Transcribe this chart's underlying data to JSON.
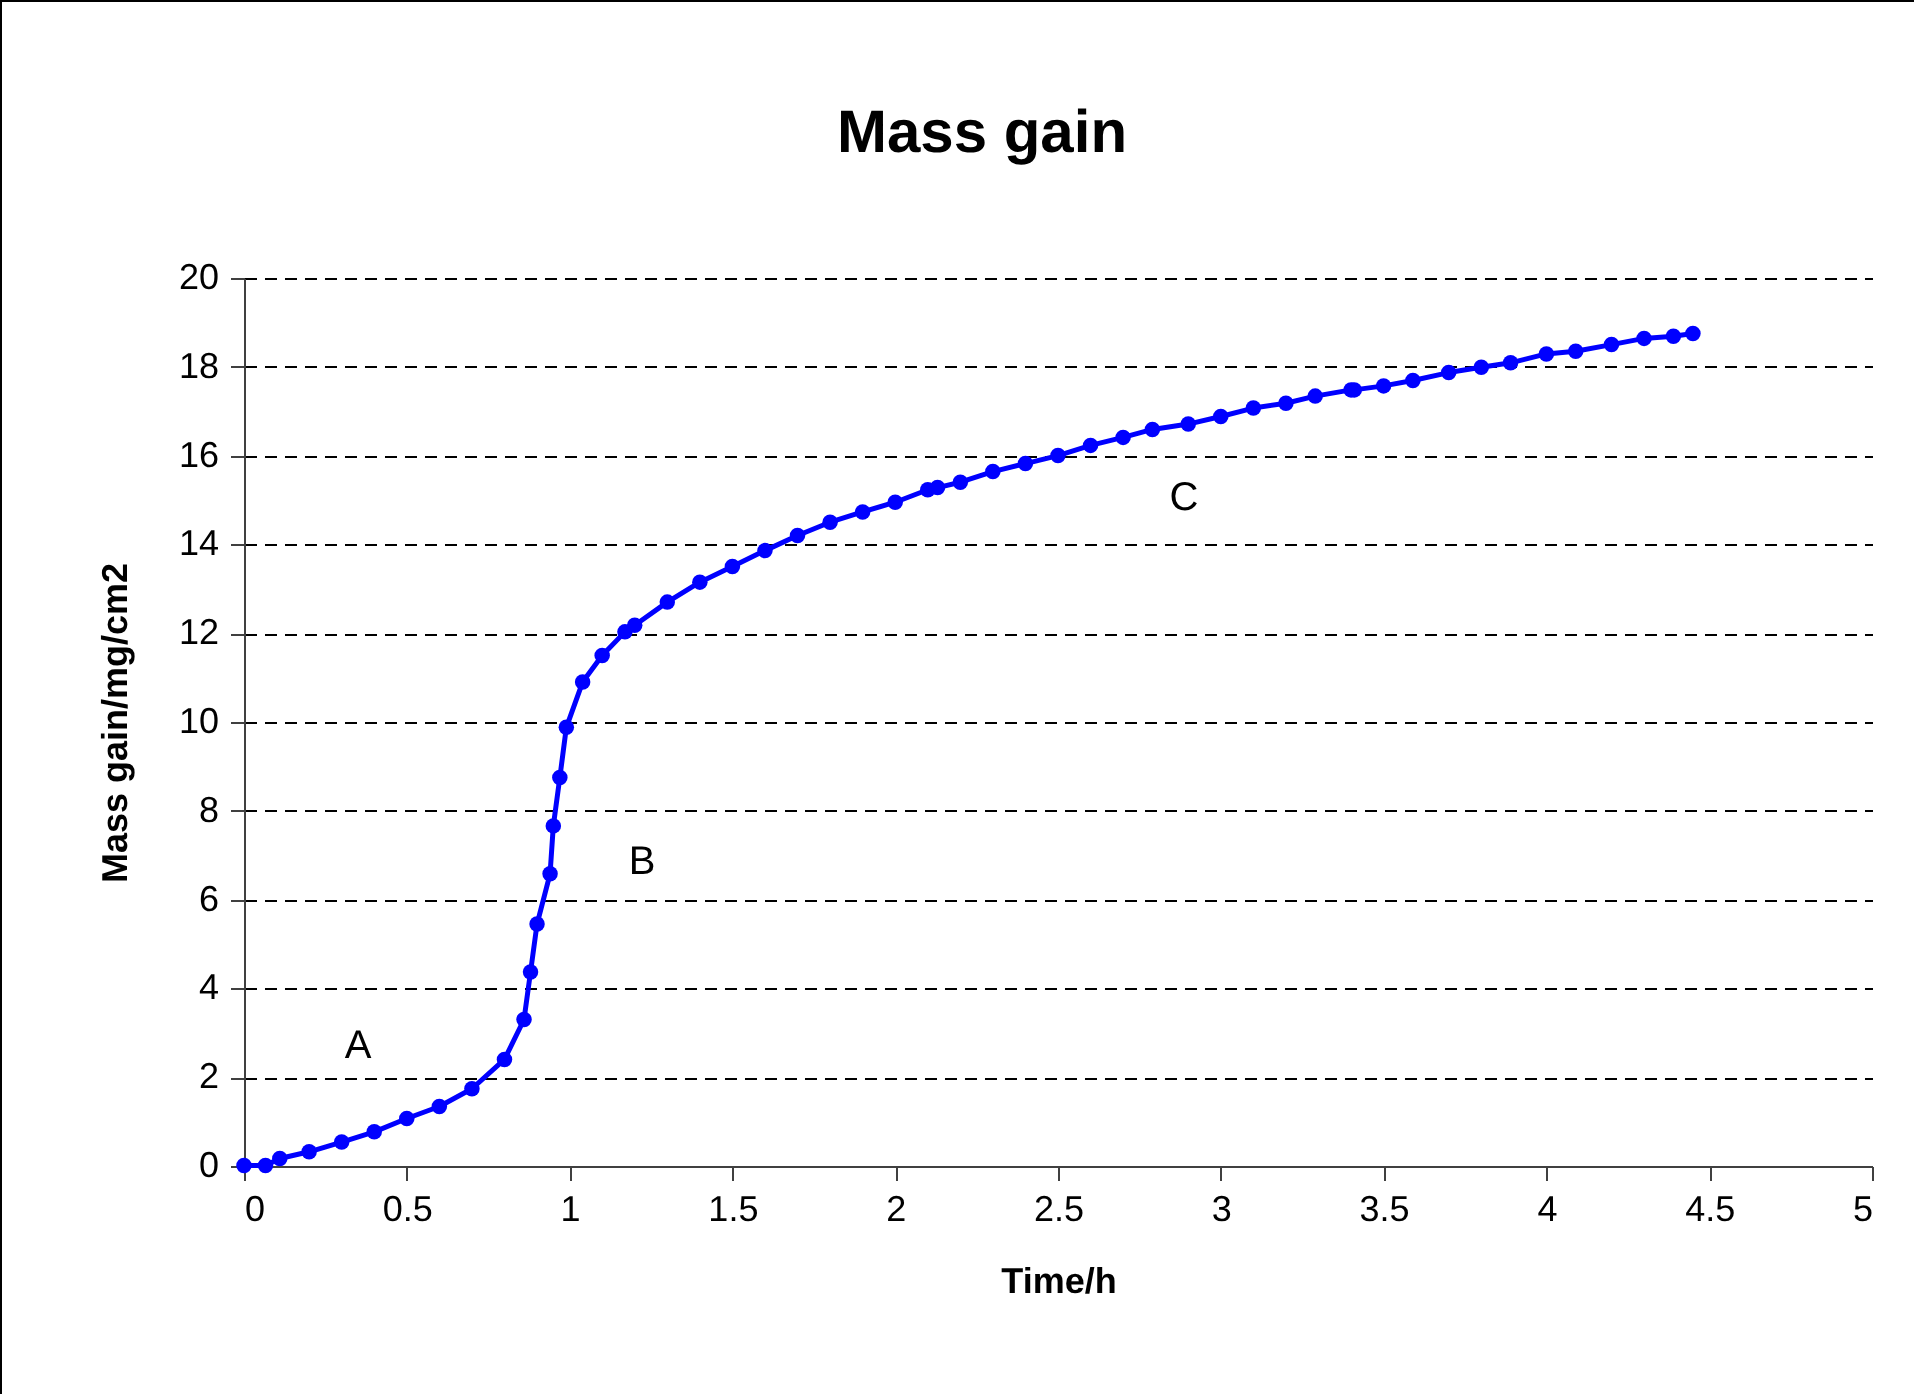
{
  "chart_data": {
    "type": "line",
    "title": "Mass gain",
    "xlabel": "Time/h",
    "ylabel": "Mass gain/mg/cm2",
    "x": [
      0,
      0.066,
      0.11,
      0.2,
      0.3,
      0.4,
      0.5,
      0.6,
      0.7,
      0.8,
      0.86,
      0.88,
      0.9,
      0.94,
      0.95,
      0.97,
      0.99,
      1.04,
      1.1,
      1.17,
      1.2,
      1.3,
      1.4,
      1.5,
      1.6,
      1.7,
      1.8,
      1.9,
      2.0,
      2.1,
      2.13,
      2.2,
      2.3,
      2.4,
      2.5,
      2.6,
      2.7,
      2.79,
      2.9,
      3.0,
      3.1,
      3.2,
      3.29,
      3.4,
      3.41,
      3.5,
      3.59,
      3.7,
      3.8,
      3.89,
      4.0,
      4.09,
      4.2,
      4.3,
      4.39,
      4.45
    ],
    "series": [
      {
        "color": "#0000ff",
        "values": [
          0.01,
          0.01,
          0.17,
          0.32,
          0.54,
          0.77,
          1.07,
          1.34,
          1.74,
          2.4,
          3.3,
          4.37,
          5.45,
          6.58,
          7.66,
          8.75,
          9.88,
          10.9,
          11.5,
          12.03,
          12.18,
          12.7,
          13.15,
          13.5,
          13.86,
          14.2,
          14.5,
          14.73,
          14.95,
          15.23,
          15.28,
          15.4,
          15.64,
          15.82,
          16.0,
          16.23,
          16.41,
          16.59,
          16.71,
          16.88,
          17.07,
          17.18,
          17.34,
          17.48,
          17.48,
          17.57,
          17.69,
          17.87,
          17.99,
          18.09,
          18.29,
          18.35,
          18.5,
          18.64,
          18.69,
          18.75
        ]
      }
    ],
    "xlim": [
      0,
      5
    ],
    "xticks": [
      0,
      0.5,
      1,
      1.5,
      2,
      2.5,
      3,
      3.5,
      4,
      4.5,
      5
    ],
    "ylim": [
      0,
      20
    ],
    "yticks": [
      0,
      2,
      4,
      6,
      8,
      10,
      12,
      14,
      16,
      18,
      20
    ],
    "grid": "y",
    "marker": "circle",
    "line_style": "solid",
    "annotations": [
      "A",
      "B",
      "C"
    ]
  }
}
